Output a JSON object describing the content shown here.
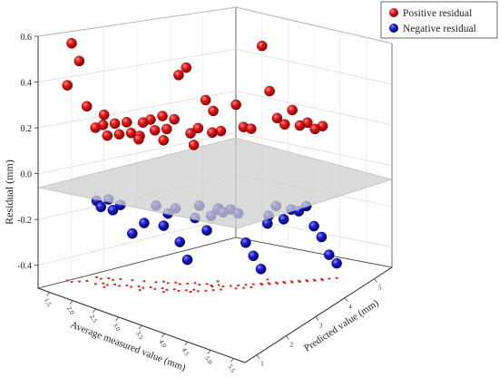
{
  "chart_data": {
    "type": "scatter",
    "projection": "3d",
    "xlabel": "Average measured value (mm)",
    "ylabel": "Predicted value (mm)",
    "zlabel": "Residual (mm)",
    "zlim": [
      -0.5,
      0.6
    ],
    "z_ticks": [
      "0.6",
      "0.4",
      "0.2",
      "0.0",
      "-0.2",
      "-0.4"
    ],
    "x_ticks": [
      "1.5",
      "2.0",
      "2.5",
      "3.0",
      "3.5",
      "4.0",
      "4.5",
      "5.0",
      "5.5"
    ],
    "y_ticks": [
      "1",
      "2",
      "3",
      "4",
      "5"
    ],
    "zero_plane": true,
    "grid": true,
    "legend_position": "top-right",
    "colors": {
      "positive": "#d81b1b",
      "negative": "#1c1cc8",
      "plane": "#cfcfcf",
      "projection": "#e02020"
    },
    "series": [
      {
        "name": "Positive residual",
        "color": "#d81b1b",
        "points": [
          {
            "x": 1.4,
            "y": 1.0,
            "z": 0.55
          },
          {
            "x": 1.5,
            "y": 1.1,
            "z": 0.47
          },
          {
            "x": 1.3,
            "y": 1.0,
            "z": 0.36
          },
          {
            "x": 1.6,
            "y": 1.2,
            "z": 0.27
          },
          {
            "x": 1.8,
            "y": 1.2,
            "z": 0.19
          },
          {
            "x": 1.9,
            "y": 1.3,
            "z": 0.2
          },
          {
            "x": 2.0,
            "y": 1.3,
            "z": 0.16
          },
          {
            "x": 2.1,
            "y": 1.4,
            "z": 0.21
          },
          {
            "x": 2.2,
            "y": 1.4,
            "z": 0.17
          },
          {
            "x": 2.3,
            "y": 1.5,
            "z": 0.22
          },
          {
            "x": 2.4,
            "y": 1.5,
            "z": 0.18
          },
          {
            "x": 2.5,
            "y": 1.6,
            "z": 0.15
          },
          {
            "x": 2.6,
            "y": 1.6,
            "z": 0.23
          },
          {
            "x": 2.7,
            "y": 1.7,
            "z": 0.24
          },
          {
            "x": 2.8,
            "y": 1.7,
            "z": 0.2
          },
          {
            "x": 2.9,
            "y": 1.8,
            "z": 0.26
          },
          {
            "x": 3.0,
            "y": 1.8,
            "z": 0.21
          },
          {
            "x": 3.1,
            "y": 1.9,
            "z": 0.25
          },
          {
            "x": 3.2,
            "y": 1.9,
            "z": 0.45
          },
          {
            "x": 3.3,
            "y": 2.0,
            "z": 0.48
          },
          {
            "x": 3.4,
            "y": 2.0,
            "z": 0.2
          },
          {
            "x": 3.4,
            "y": 2.1,
            "z": 0.14
          },
          {
            "x": 3.5,
            "y": 2.1,
            "z": 0.22
          },
          {
            "x": 3.6,
            "y": 2.2,
            "z": 0.34
          },
          {
            "x": 3.7,
            "y": 2.3,
            "z": 0.29
          },
          {
            "x": 3.8,
            "y": 2.4,
            "z": 0.2
          },
          {
            "x": 4.0,
            "y": 2.6,
            "z": 0.31
          },
          {
            "x": 4.1,
            "y": 2.7,
            "z": 0.21
          },
          {
            "x": 4.2,
            "y": 2.8,
            "z": 0.2
          },
          {
            "x": 4.3,
            "y": 3.0,
            "z": 0.55
          },
          {
            "x": 4.4,
            "y": 3.1,
            "z": 0.35
          },
          {
            "x": 4.5,
            "y": 3.2,
            "z": 0.23
          },
          {
            "x": 4.6,
            "y": 3.3,
            "z": 0.2
          },
          {
            "x": 4.7,
            "y": 3.4,
            "z": 0.26
          },
          {
            "x": 4.8,
            "y": 3.5,
            "z": 0.19
          },
          {
            "x": 4.9,
            "y": 3.6,
            "z": 0.2
          },
          {
            "x": 5.0,
            "y": 3.7,
            "z": 0.17
          },
          {
            "x": 5.1,
            "y": 3.8,
            "z": 0.18
          },
          {
            "x": 2.0,
            "y": 1.2,
            "z": 0.26
          },
          {
            "x": 2.6,
            "y": 1.5,
            "z": 0.18
          },
          {
            "x": 3.0,
            "y": 1.7,
            "z": 0.17
          },
          {
            "x": 3.6,
            "y": 2.4,
            "z": 0.18
          }
        ]
      },
      {
        "name": "Negative residual",
        "color": "#1c1cc8",
        "points": [
          {
            "x": 1.6,
            "y": 1.5,
            "z": -0.17
          },
          {
            "x": 1.7,
            "y": 1.5,
            "z": -0.19
          },
          {
            "x": 1.8,
            "y": 1.6,
            "z": -0.16
          },
          {
            "x": 1.9,
            "y": 1.6,
            "z": -0.2
          },
          {
            "x": 2.0,
            "y": 1.7,
            "z": -0.18
          },
          {
            "x": 2.6,
            "y": 2.0,
            "z": -0.17
          },
          {
            "x": 2.7,
            "y": 2.1,
            "z": -0.26
          },
          {
            "x": 2.8,
            "y": 2.1,
            "z": -0.2
          },
          {
            "x": 2.9,
            "y": 2.2,
            "z": -0.18
          },
          {
            "x": 3.0,
            "y": 2.2,
            "z": -0.32
          },
          {
            "x": 3.1,
            "y": 2.3,
            "z": -0.4
          },
          {
            "x": 3.2,
            "y": 2.4,
            "z": -0.22
          },
          {
            "x": 3.3,
            "y": 2.4,
            "z": -0.16
          },
          {
            "x": 3.4,
            "y": 2.5,
            "z": -0.27
          },
          {
            "x": 3.5,
            "y": 2.5,
            "z": -0.2
          },
          {
            "x": 3.6,
            "y": 2.6,
            "z": -0.17
          },
          {
            "x": 3.7,
            "y": 2.6,
            "z": -0.18
          },
          {
            "x": 3.8,
            "y": 2.7,
            "z": -0.17
          },
          {
            "x": 3.9,
            "y": 2.8,
            "z": -0.19
          },
          {
            "x": 4.0,
            "y": 2.9,
            "z": -0.32
          },
          {
            "x": 4.1,
            "y": 3.0,
            "z": -0.38
          },
          {
            "x": 4.2,
            "y": 3.1,
            "z": -0.44
          },
          {
            "x": 4.3,
            "y": 3.2,
            "z": -0.21
          },
          {
            "x": 4.4,
            "y": 3.3,
            "z": -0.17
          },
          {
            "x": 4.5,
            "y": 3.4,
            "z": -0.23
          },
          {
            "x": 4.6,
            "y": 3.5,
            "z": -0.19
          },
          {
            "x": 4.7,
            "y": 3.6,
            "z": -0.2
          },
          {
            "x": 4.8,
            "y": 3.7,
            "z": -0.18
          },
          {
            "x": 4.9,
            "y": 3.8,
            "z": -0.27
          },
          {
            "x": 5.0,
            "y": 3.9,
            "z": -0.32
          },
          {
            "x": 5.1,
            "y": 4.0,
            "z": -0.4
          },
          {
            "x": 5.2,
            "y": 4.1,
            "z": -0.44
          },
          {
            "x": 2.2,
            "y": 1.8,
            "z": -0.3
          },
          {
            "x": 2.4,
            "y": 1.9,
            "z": -0.25
          },
          {
            "x": 3.5,
            "y": 2.7,
            "z": -0.19
          },
          {
            "x": 4.2,
            "y": 3.3,
            "z": -0.26
          }
        ]
      }
    ]
  }
}
